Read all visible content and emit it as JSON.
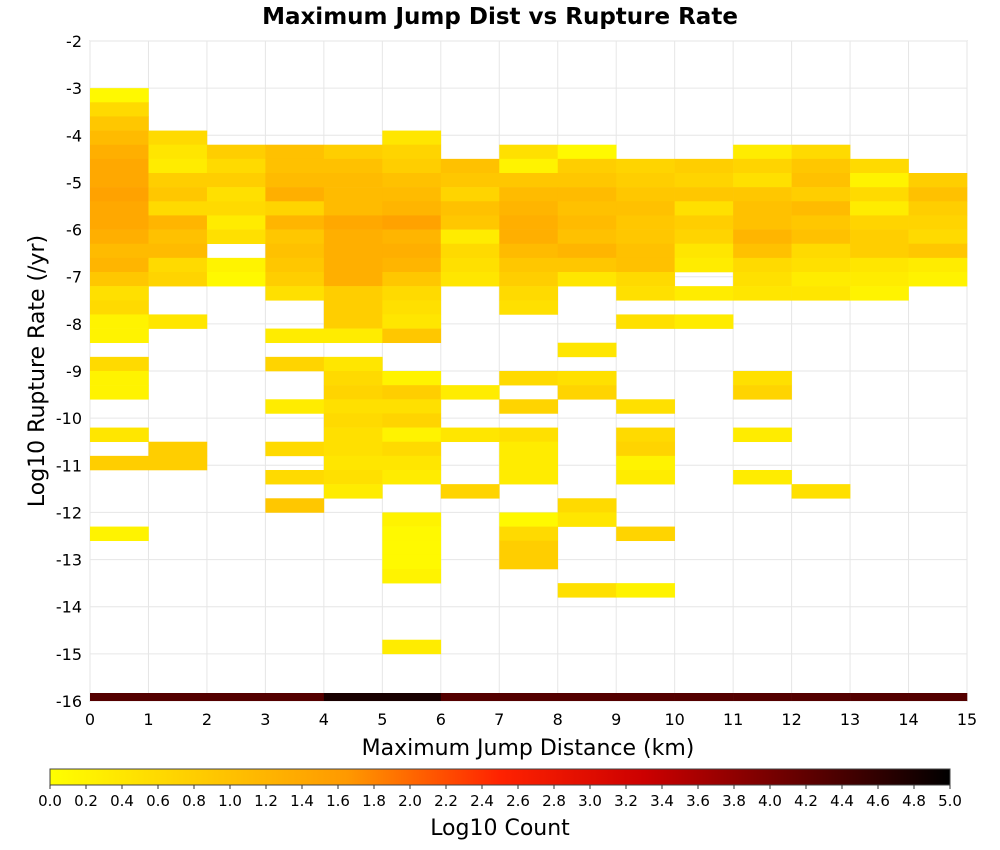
{
  "chart_data": {
    "type": "heatmap",
    "title": "Maximum Jump Dist vs Rupture Rate",
    "xlabel": "Maximum Jump Distance (km)",
    "ylabel": "Log10 Rupture Rate (/yr)",
    "colorbar_label": "Log10 Count",
    "xlim": [
      0,
      15
    ],
    "ylim": [
      -16,
      -2
    ],
    "x_ticks": [
      0,
      1,
      2,
      3,
      4,
      5,
      6,
      7,
      8,
      9,
      10,
      11,
      12,
      13,
      14,
      15
    ],
    "y_ticks": [
      -16,
      -15,
      -14,
      -13,
      -12,
      -11,
      -10,
      -9,
      -8,
      -7,
      -6,
      -5,
      -4,
      -3,
      -2
    ],
    "colorbar_range": [
      0,
      5
    ],
    "colorbar_ticks": [
      "0.0",
      "0.2",
      "0.4",
      "0.6",
      "0.8",
      "1.0",
      "1.2",
      "1.4",
      "1.6",
      "1.8",
      "2.0",
      "2.2",
      "2.4",
      "2.6",
      "2.8",
      "3.0",
      "3.2",
      "3.4",
      "3.6",
      "3.8",
      "4.0",
      "4.2",
      "4.4",
      "4.6",
      "4.8",
      "5.0"
    ],
    "colormap": [
      "#ffff00",
      "#ff9900",
      "#ff0000",
      "#000000"
    ],
    "grid": true,
    "bin_size": {
      "x": 1,
      "y": 0.3
    },
    "cells": [
      [
        0,
        -3.0,
        0.1
      ],
      [
        0,
        -3.3,
        0.6
      ],
      [
        0,
        -3.6,
        0.9
      ],
      [
        0,
        -3.9,
        1.1
      ],
      [
        0,
        -4.2,
        1.3
      ],
      [
        0,
        -4.5,
        1.4
      ],
      [
        0,
        -4.8,
        1.4
      ],
      [
        0,
        -5.1,
        1.5
      ],
      [
        0,
        -5.4,
        1.4
      ],
      [
        0,
        -5.7,
        1.4
      ],
      [
        0,
        -6.0,
        1.3
      ],
      [
        0,
        -6.3,
        1.1
      ],
      [
        0,
        -6.6,
        1.2
      ],
      [
        0,
        -6.9,
        0.9
      ],
      [
        0,
        -7.2,
        0.5
      ],
      [
        0,
        -7.5,
        0.6
      ],
      [
        0,
        -7.8,
        0.2
      ],
      [
        0,
        -8.1,
        0.2
      ],
      [
        0,
        -8.7,
        0.6
      ],
      [
        0,
        -9.0,
        0.2
      ],
      [
        0,
        -9.3,
        0.2
      ],
      [
        0,
        -10.2,
        0.4
      ],
      [
        0,
        -10.8,
        0.8
      ],
      [
        0,
        -12.3,
        0.2
      ],
      [
        1,
        -3.9,
        0.6
      ],
      [
        1,
        -4.2,
        0.4
      ],
      [
        1,
        -4.5,
        0.3
      ],
      [
        1,
        -4.8,
        0.8
      ],
      [
        1,
        -5.1,
        0.9
      ],
      [
        1,
        -5.4,
        0.6
      ],
      [
        1,
        -5.7,
        1.2
      ],
      [
        1,
        -6.0,
        1.0
      ],
      [
        1,
        -6.3,
        1.1
      ],
      [
        1,
        -6.6,
        0.6
      ],
      [
        1,
        -6.9,
        0.7
      ],
      [
        1,
        -7.8,
        0.4
      ],
      [
        1,
        -10.5,
        0.8
      ],
      [
        1,
        -10.8,
        0.8
      ],
      [
        2,
        -4.2,
        0.8
      ],
      [
        2,
        -4.5,
        0.6
      ],
      [
        2,
        -4.8,
        0.8
      ],
      [
        2,
        -5.1,
        0.5
      ],
      [
        2,
        -5.4,
        0.6
      ],
      [
        2,
        -5.7,
        0.3
      ],
      [
        2,
        -6.0,
        0.5
      ],
      [
        2,
        -6.6,
        0.2
      ],
      [
        2,
        -6.9,
        0.1
      ],
      [
        3,
        -4.2,
        1.0
      ],
      [
        3,
        -4.5,
        1.0
      ],
      [
        3,
        -4.8,
        1.1
      ],
      [
        3,
        -5.1,
        1.3
      ],
      [
        3,
        -5.4,
        0.7
      ],
      [
        3,
        -5.7,
        1.2
      ],
      [
        3,
        -6.0,
        0.9
      ],
      [
        3,
        -6.3,
        1.0
      ],
      [
        3,
        -6.6,
        0.9
      ],
      [
        3,
        -6.9,
        0.8
      ],
      [
        3,
        -7.2,
        0.5
      ],
      [
        3,
        -8.1,
        0.3
      ],
      [
        3,
        -8.7,
        0.7
      ],
      [
        3,
        -9.6,
        0.3
      ],
      [
        3,
        -10.5,
        0.6
      ],
      [
        3,
        -11.1,
        0.6
      ],
      [
        3,
        -11.7,
        0.9
      ],
      [
        4,
        -4.2,
        0.8
      ],
      [
        4,
        -4.5,
        1.0
      ],
      [
        4,
        -4.8,
        1.1
      ],
      [
        4,
        -5.1,
        1.1
      ],
      [
        4,
        -5.4,
        1.1
      ],
      [
        4,
        -5.7,
        1.4
      ],
      [
        4,
        -6.0,
        1.3
      ],
      [
        4,
        -6.3,
        1.3
      ],
      [
        4,
        -6.6,
        1.3
      ],
      [
        4,
        -6.9,
        1.3
      ],
      [
        4,
        -7.2,
        0.8
      ],
      [
        4,
        -7.5,
        0.8
      ],
      [
        4,
        -7.8,
        0.8
      ],
      [
        4,
        -8.1,
        0.3
      ],
      [
        4,
        -8.7,
        0.4
      ],
      [
        4,
        -9.0,
        0.6
      ],
      [
        4,
        -9.3,
        0.7
      ],
      [
        4,
        -9.6,
        0.5
      ],
      [
        4,
        -9.9,
        0.6
      ],
      [
        4,
        -10.2,
        0.5
      ],
      [
        4,
        -10.5,
        0.5
      ],
      [
        4,
        -10.8,
        0.4
      ],
      [
        4,
        -11.1,
        0.5
      ],
      [
        4,
        -11.4,
        0.3
      ],
      [
        5,
        -3.9,
        0.4
      ],
      [
        5,
        -4.2,
        0.7
      ],
      [
        5,
        -4.5,
        0.8
      ],
      [
        5,
        -4.8,
        1.0
      ],
      [
        5,
        -5.1,
        1.1
      ],
      [
        5,
        -5.4,
        1.2
      ],
      [
        5,
        -5.7,
        1.5
      ],
      [
        5,
        -6.0,
        1.2
      ],
      [
        5,
        -6.3,
        1.3
      ],
      [
        5,
        -6.6,
        1.2
      ],
      [
        5,
        -6.9,
        0.9
      ],
      [
        5,
        -7.2,
        0.6
      ],
      [
        5,
        -7.5,
        0.5
      ],
      [
        5,
        -7.8,
        0.4
      ],
      [
        5,
        -8.1,
        0.9
      ],
      [
        5,
        -9.0,
        0.2
      ],
      [
        5,
        -9.3,
        0.8
      ],
      [
        5,
        -9.6,
        0.5
      ],
      [
        5,
        -9.9,
        0.7
      ],
      [
        5,
        -10.2,
        0.2
      ],
      [
        5,
        -10.5,
        0.6
      ],
      [
        5,
        -10.8,
        0.4
      ],
      [
        5,
        -11.1,
        0.3
      ],
      [
        5,
        -12.0,
        0.2
      ],
      [
        5,
        -12.3,
        0.1
      ],
      [
        5,
        -12.6,
        0.1
      ],
      [
        5,
        -12.9,
        0.1
      ],
      [
        5,
        -13.2,
        0.2
      ],
      [
        5,
        -14.7,
        0.3
      ],
      [
        6,
        -4.5,
        1.0
      ],
      [
        6,
        -4.8,
        0.9
      ],
      [
        6,
        -5.1,
        0.7
      ],
      [
        6,
        -5.4,
        1.0
      ],
      [
        6,
        -5.7,
        0.9
      ],
      [
        6,
        -6.0,
        0.3
      ],
      [
        6,
        -6.3,
        0.6
      ],
      [
        6,
        -6.6,
        0.5
      ],
      [
        6,
        -6.9,
        0.4
      ],
      [
        6,
        -9.3,
        0.3
      ],
      [
        6,
        -10.2,
        0.4
      ],
      [
        6,
        -11.4,
        0.7
      ],
      [
        7,
        -4.2,
        0.5
      ],
      [
        7,
        -4.5,
        0.2
      ],
      [
        7,
        -4.8,
        0.9
      ],
      [
        7,
        -5.1,
        1.1
      ],
      [
        7,
        -5.4,
        1.2
      ],
      [
        7,
        -5.7,
        1.3
      ],
      [
        7,
        -6.0,
        1.3
      ],
      [
        7,
        -6.3,
        1.1
      ],
      [
        7,
        -6.6,
        0.9
      ],
      [
        7,
        -6.9,
        0.8
      ],
      [
        7,
        -7.2,
        0.6
      ],
      [
        7,
        -7.5,
        0.5
      ],
      [
        7,
        -9.0,
        0.6
      ],
      [
        7,
        -9.6,
        0.7
      ],
      [
        7,
        -10.2,
        0.5
      ],
      [
        7,
        -10.5,
        0.3
      ],
      [
        7,
        -10.8,
        0.3
      ],
      [
        7,
        -11.1,
        0.3
      ],
      [
        7,
        -12.0,
        0.1
      ],
      [
        7,
        -12.3,
        0.6
      ],
      [
        7,
        -12.6,
        0.8
      ],
      [
        7,
        -12.9,
        0.8
      ],
      [
        8,
        -4.2,
        0.1
      ],
      [
        8,
        -4.5,
        0.8
      ],
      [
        8,
        -4.8,
        0.9
      ],
      [
        8,
        -5.1,
        1.1
      ],
      [
        8,
        -5.4,
        1.0
      ],
      [
        8,
        -5.7,
        1.1
      ],
      [
        8,
        -6.0,
        1.0
      ],
      [
        8,
        -6.3,
        1.2
      ],
      [
        8,
        -6.6,
        0.9
      ],
      [
        8,
        -6.9,
        0.4
      ],
      [
        8,
        -8.4,
        0.4
      ],
      [
        8,
        -9.0,
        0.5
      ],
      [
        8,
        -9.3,
        0.7
      ],
      [
        8,
        -11.7,
        0.6
      ],
      [
        8,
        -12.0,
        0.4
      ],
      [
        8,
        -13.5,
        0.5
      ],
      [
        9,
        -4.5,
        0.7
      ],
      [
        9,
        -4.8,
        0.8
      ],
      [
        9,
        -5.1,
        0.9
      ],
      [
        9,
        -5.4,
        1.0
      ],
      [
        9,
        -5.7,
        0.9
      ],
      [
        9,
        -6.0,
        0.9
      ],
      [
        9,
        -6.3,
        1.0
      ],
      [
        9,
        -6.6,
        1.0
      ],
      [
        9,
        -6.9,
        0.6
      ],
      [
        9,
        -7.2,
        0.5
      ],
      [
        9,
        -7.8,
        0.5
      ],
      [
        9,
        -9.6,
        0.5
      ],
      [
        9,
        -10.2,
        0.6
      ],
      [
        9,
        -10.5,
        0.7
      ],
      [
        9,
        -10.8,
        0.2
      ],
      [
        9,
        -11.1,
        0.3
      ],
      [
        9,
        -12.3,
        0.7
      ],
      [
        9,
        -13.5,
        0.2
      ],
      [
        10,
        -4.5,
        0.8
      ],
      [
        10,
        -4.8,
        0.7
      ],
      [
        10,
        -5.1,
        0.9
      ],
      [
        10,
        -5.4,
        0.5
      ],
      [
        10,
        -5.7,
        0.8
      ],
      [
        10,
        -6.0,
        0.7
      ],
      [
        10,
        -6.3,
        0.4
      ],
      [
        10,
        -6.6,
        0.3
      ],
      [
        10,
        -7.2,
        0.3
      ],
      [
        10,
        -7.8,
        0.3
      ],
      [
        11,
        -4.2,
        0.3
      ],
      [
        11,
        -4.5,
        0.7
      ],
      [
        11,
        -4.8,
        0.5
      ],
      [
        11,
        -5.1,
        0.9
      ],
      [
        11,
        -5.4,
        1.0
      ],
      [
        11,
        -5.7,
        1.0
      ],
      [
        11,
        -6.0,
        1.2
      ],
      [
        11,
        -6.3,
        1.0
      ],
      [
        11,
        -6.6,
        0.6
      ],
      [
        11,
        -6.9,
        0.5
      ],
      [
        11,
        -7.2,
        0.4
      ],
      [
        11,
        -9.0,
        0.5
      ],
      [
        11,
        -9.3,
        0.7
      ],
      [
        11,
        -10.2,
        0.3
      ],
      [
        11,
        -11.1,
        0.3
      ],
      [
        12,
        -4.2,
        0.6
      ],
      [
        12,
        -4.5,
        0.9
      ],
      [
        12,
        -4.8,
        1.0
      ],
      [
        12,
        -5.1,
        0.8
      ],
      [
        12,
        -5.4,
        1.1
      ],
      [
        12,
        -5.7,
        0.9
      ],
      [
        12,
        -6.0,
        1.0
      ],
      [
        12,
        -6.3,
        0.6
      ],
      [
        12,
        -6.6,
        0.5
      ],
      [
        12,
        -6.9,
        0.3
      ],
      [
        12,
        -7.2,
        0.4
      ],
      [
        12,
        -11.4,
        0.5
      ],
      [
        13,
        -4.5,
        0.6
      ],
      [
        13,
        -4.8,
        0.2
      ],
      [
        13,
        -5.1,
        0.6
      ],
      [
        13,
        -5.4,
        0.3
      ],
      [
        13,
        -5.7,
        0.7
      ],
      [
        13,
        -6.0,
        0.8
      ],
      [
        13,
        -6.3,
        0.8
      ],
      [
        13,
        -6.6,
        0.4
      ],
      [
        13,
        -6.9,
        0.3
      ],
      [
        13,
        -7.2,
        0.2
      ],
      [
        14,
        -4.8,
        0.8
      ],
      [
        14,
        -5.1,
        1.0
      ],
      [
        14,
        -5.4,
        0.8
      ],
      [
        14,
        -5.7,
        0.7
      ],
      [
        14,
        -6.0,
        0.6
      ],
      [
        14,
        -6.3,
        0.9
      ],
      [
        14,
        -6.6,
        0.3
      ],
      [
        14,
        -6.9,
        0.2
      ]
    ],
    "bottom_row": {
      "y": -16,
      "values": [
        4.3,
        4.3,
        4.3,
        4.3,
        4.8,
        4.8,
        4.3,
        4.3,
        4.3,
        4.3,
        4.3,
        4.3,
        4.3,
        4.3,
        4.3
      ]
    }
  }
}
